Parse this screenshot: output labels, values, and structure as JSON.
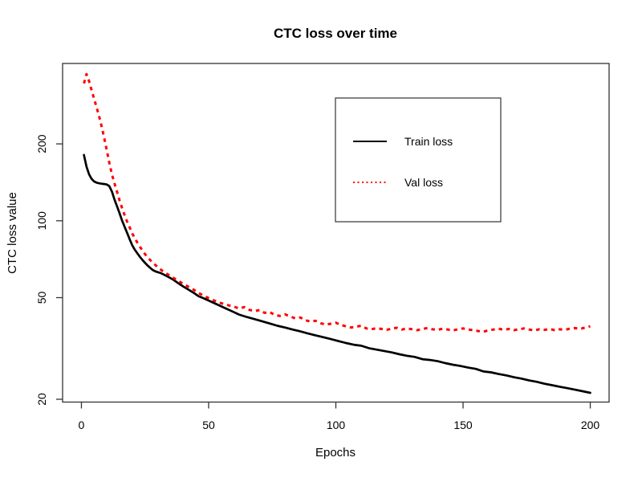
{
  "chart_data": {
    "type": "line",
    "title": "CTC loss over time",
    "xlabel": "Epochs",
    "ylabel": "CTC loss value",
    "x_ticks": [
      0,
      50,
      100,
      150,
      200
    ],
    "y_ticks": [
      20,
      50,
      100,
      200
    ],
    "y_scale": "log",
    "xlim": [
      -7.4,
      207.4
    ],
    "ylim": [
      19.5,
      413
    ],
    "grid": false,
    "legend": {
      "position": "top-right-box",
      "border": true
    },
    "colors": {
      "axis": "#333333",
      "background": "#ffffff"
    },
    "series": [
      {
        "name": "Train loss",
        "color": "#000000",
        "style": "solid",
        "points": [
          [
            1,
            181
          ],
          [
            2,
            163
          ],
          [
            3,
            152
          ],
          [
            4,
            146
          ],
          [
            5,
            142.5
          ],
          [
            6,
            141
          ],
          [
            7,
            140.2
          ],
          [
            8,
            139.6
          ],
          [
            9,
            139.2
          ],
          [
            10,
            138.6
          ],
          [
            11,
            136.5
          ],
          [
            12,
            130
          ],
          [
            13,
            121
          ],
          [
            14,
            114
          ],
          [
            15,
            107
          ],
          [
            16,
            100
          ],
          [
            17,
            94.5
          ],
          [
            18,
            89.5
          ],
          [
            19,
            84.5
          ],
          [
            20,
            80
          ],
          [
            21,
            77
          ],
          [
            22,
            74.5
          ],
          [
            23,
            72.2
          ],
          [
            24,
            70.2
          ],
          [
            25,
            68.4
          ],
          [
            26,
            66.8
          ],
          [
            27,
            65.4
          ],
          [
            28,
            64.2
          ],
          [
            29,
            63.4
          ],
          [
            30,
            62.9
          ],
          [
            31,
            62.5
          ],
          [
            32,
            61.8
          ],
          [
            34,
            60.4
          ],
          [
            36,
            58.9
          ],
          [
            38,
            57
          ],
          [
            40,
            55.3
          ],
          [
            42,
            53.8
          ],
          [
            44,
            52.3
          ],
          [
            46,
            50.7
          ],
          [
            48,
            49.7
          ],
          [
            50,
            48.7
          ],
          [
            53,
            47.2
          ],
          [
            56,
            45.7
          ],
          [
            59,
            44.3
          ],
          [
            62,
            42.9
          ],
          [
            65,
            42
          ],
          [
            68,
            41.2
          ],
          [
            71,
            40.4
          ],
          [
            74,
            39.6
          ],
          [
            77,
            38.8
          ],
          [
            80,
            38.2
          ],
          [
            83,
            37.5
          ],
          [
            86,
            36.9
          ],
          [
            89,
            36.2
          ],
          [
            92,
            35.6
          ],
          [
            95,
            35
          ],
          [
            98,
            34.4
          ],
          [
            101,
            33.8
          ],
          [
            104,
            33.2
          ],
          [
            107,
            32.7
          ],
          [
            110,
            32.4
          ],
          [
            113,
            31.7
          ],
          [
            116,
            31.3
          ],
          [
            119,
            30.9
          ],
          [
            122,
            30.5
          ],
          [
            125,
            30
          ],
          [
            128,
            29.6
          ],
          [
            131,
            29.3
          ],
          [
            134,
            28.7
          ],
          [
            137,
            28.5
          ],
          [
            140,
            28.2
          ],
          [
            143,
            27.7
          ],
          [
            146,
            27.3
          ],
          [
            149,
            27
          ],
          [
            152,
            26.6
          ],
          [
            155,
            26.3
          ],
          [
            158,
            25.7
          ],
          [
            161,
            25.5
          ],
          [
            164,
            25.1
          ],
          [
            167,
            24.8
          ],
          [
            170,
            24.4
          ],
          [
            173,
            24.1
          ],
          [
            176,
            23.7
          ],
          [
            179,
            23.4
          ],
          [
            182,
            23
          ],
          [
            185,
            22.7
          ],
          [
            188,
            22.4
          ],
          [
            191,
            22.1
          ],
          [
            194,
            21.8
          ],
          [
            197,
            21.5
          ],
          [
            200,
            21.2
          ]
        ]
      },
      {
        "name": "Val loss",
        "color": "#ff0000",
        "style": "dotted",
        "points": [
          [
            1,
            345
          ],
          [
            2,
            375
          ],
          [
            3,
            352
          ],
          [
            4,
            325
          ],
          [
            5,
            300
          ],
          [
            6,
            277
          ],
          [
            7,
            255
          ],
          [
            8,
            233
          ],
          [
            9,
            210
          ],
          [
            10,
            188
          ],
          [
            11,
            168
          ],
          [
            12,
            152
          ],
          [
            13,
            140
          ],
          [
            14,
            130
          ],
          [
            15,
            120
          ],
          [
            16,
            112
          ],
          [
            17,
            105
          ],
          [
            18,
            99
          ],
          [
            19,
            94
          ],
          [
            20,
            89
          ],
          [
            21,
            85.5
          ],
          [
            22,
            82
          ],
          [
            23,
            79
          ],
          [
            24,
            76.5
          ],
          [
            25,
            74
          ],
          [
            26,
            72
          ],
          [
            27,
            70.2
          ],
          [
            28,
            68.6
          ],
          [
            29,
            67.2
          ],
          [
            30,
            65.8
          ],
          [
            31,
            64.6
          ],
          [
            32,
            63.5
          ],
          [
            34,
            61.6
          ],
          [
            36,
            59.9
          ],
          [
            38,
            58.2
          ],
          [
            40,
            56.6
          ],
          [
            42,
            55.2
          ],
          [
            44,
            53.8
          ],
          [
            46,
            52.2
          ],
          [
            48,
            50.9
          ],
          [
            50,
            49.8
          ],
          [
            52,
            48.8
          ],
          [
            54,
            47.9
          ],
          [
            56,
            47.2
          ],
          [
            58,
            46.6
          ],
          [
            60,
            46.1
          ],
          [
            62,
            45.3
          ],
          [
            64,
            45.9
          ],
          [
            66,
            44.8
          ],
          [
            68,
            44.3
          ],
          [
            70,
            44.7
          ],
          [
            72,
            43.6
          ],
          [
            74,
            43.9
          ],
          [
            76,
            42.8
          ],
          [
            78,
            42.4
          ],
          [
            80,
            43
          ],
          [
            82,
            42.2
          ],
          [
            84,
            41.5
          ],
          [
            86,
            41.8
          ],
          [
            88,
            40.8
          ],
          [
            90,
            40.3
          ],
          [
            92,
            40.6
          ],
          [
            94,
            39.7
          ],
          [
            96,
            39.2
          ],
          [
            98,
            39.5
          ],
          [
            100,
            39.9
          ],
          [
            102,
            39.1
          ],
          [
            104,
            38.6
          ],
          [
            106,
            38.2
          ],
          [
            108,
            38.5
          ],
          [
            110,
            38.8
          ],
          [
            112,
            37.9
          ],
          [
            114,
            37.6
          ],
          [
            116,
            38
          ],
          [
            118,
            37.7
          ],
          [
            120,
            37.4
          ],
          [
            122,
            37.8
          ],
          [
            124,
            38.1
          ],
          [
            126,
            37.5
          ],
          [
            128,
            37.9
          ],
          [
            130,
            37.6
          ],
          [
            132,
            37.3
          ],
          [
            134,
            37.7
          ],
          [
            136,
            38
          ],
          [
            138,
            37.6
          ],
          [
            140,
            37.4
          ],
          [
            142,
            37.8
          ],
          [
            144,
            37.5
          ],
          [
            146,
            37.2
          ],
          [
            148,
            37.6
          ],
          [
            150,
            37.9
          ],
          [
            152,
            37.5
          ],
          [
            154,
            37.3
          ],
          [
            156,
            37
          ],
          [
            158,
            36.8
          ],
          [
            160,
            37.2
          ],
          [
            162,
            37.5
          ],
          [
            164,
            37.8
          ],
          [
            166,
            37.4
          ],
          [
            168,
            37.7
          ],
          [
            170,
            37.3
          ],
          [
            172,
            37.6
          ],
          [
            174,
            37.9
          ],
          [
            176,
            37.5
          ],
          [
            178,
            37.2
          ],
          [
            180,
            37.6
          ],
          [
            182,
            37.4
          ],
          [
            184,
            37.7
          ],
          [
            186,
            37.3
          ],
          [
            188,
            37.6
          ],
          [
            190,
            37.4
          ],
          [
            192,
            37.8
          ],
          [
            194,
            38
          ],
          [
            196,
            37.7
          ],
          [
            198,
            38.2
          ],
          [
            200,
            38.6
          ]
        ]
      }
    ]
  }
}
